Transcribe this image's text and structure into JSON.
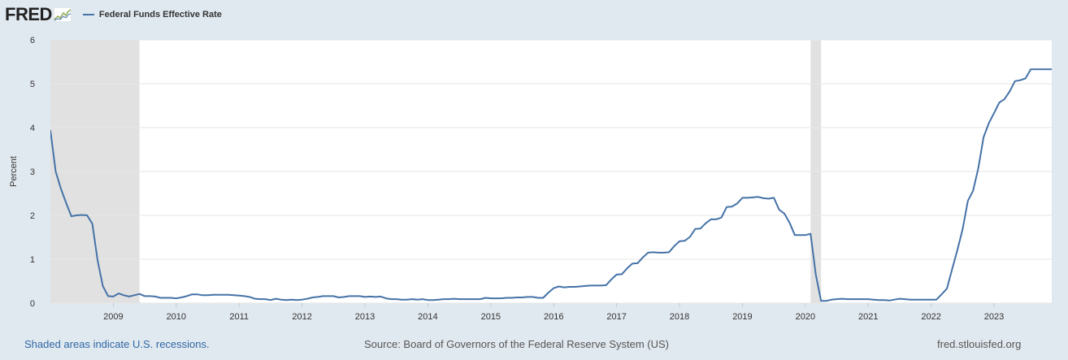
{
  "header": {
    "logo": "FRED",
    "legend_label": "Federal Funds Effective Rate"
  },
  "footer": {
    "recession_note": "Shaded areas indicate U.S. recessions.",
    "source": "Source: Board of Governors of the Federal Reserve System (US)",
    "site": "fred.stlouisfed.org"
  },
  "colors": {
    "line": "#4572a7",
    "recession": "#e1e1e1",
    "background": "#e1e9f0",
    "plot": "#ffffff",
    "grid": "#e6e6e6",
    "footer_link": "#2f67a5"
  },
  "chart_data": {
    "type": "line",
    "title": "",
    "xlabel": "",
    "ylabel": "Percent",
    "xlim": [
      "2008-01",
      "2023-12"
    ],
    "ylim": [
      0,
      6
    ],
    "yticks": [
      0,
      1,
      2,
      3,
      4,
      5,
      6
    ],
    "xticks": [
      "2009",
      "2010",
      "2011",
      "2012",
      "2013",
      "2014",
      "2015",
      "2016",
      "2017",
      "2018",
      "2019",
      "2020",
      "2021",
      "2022",
      "2023"
    ],
    "grid": true,
    "legend": "top-left",
    "recessions": [
      {
        "start": "2008-01",
        "end": "2009-06"
      },
      {
        "start": "2020-02",
        "end": "2020-04"
      }
    ],
    "series": [
      {
        "name": "Federal Funds Effective Rate",
        "x": [
          "2008-01",
          "2008-02",
          "2008-03",
          "2008-04",
          "2008-05",
          "2008-06",
          "2008-07",
          "2008-08",
          "2008-09",
          "2008-10",
          "2008-11",
          "2008-12",
          "2009-01",
          "2009-02",
          "2009-03",
          "2009-04",
          "2009-05",
          "2009-06",
          "2009-07",
          "2009-08",
          "2009-09",
          "2009-10",
          "2009-11",
          "2009-12",
          "2010-01",
          "2010-02",
          "2010-03",
          "2010-04",
          "2010-05",
          "2010-06",
          "2010-07",
          "2010-08",
          "2010-09",
          "2010-10",
          "2010-11",
          "2010-12",
          "2011-01",
          "2011-02",
          "2011-03",
          "2011-04",
          "2011-05",
          "2011-06",
          "2011-07",
          "2011-08",
          "2011-09",
          "2011-10",
          "2011-11",
          "2011-12",
          "2012-01",
          "2012-02",
          "2012-03",
          "2012-04",
          "2012-05",
          "2012-06",
          "2012-07",
          "2012-08",
          "2012-09",
          "2012-10",
          "2012-11",
          "2012-12",
          "2013-01",
          "2013-02",
          "2013-03",
          "2013-04",
          "2013-05",
          "2013-06",
          "2013-07",
          "2013-08",
          "2013-09",
          "2013-10",
          "2013-11",
          "2013-12",
          "2014-01",
          "2014-02",
          "2014-03",
          "2014-04",
          "2014-05",
          "2014-06",
          "2014-07",
          "2014-08",
          "2014-09",
          "2014-10",
          "2014-11",
          "2014-12",
          "2015-01",
          "2015-02",
          "2015-03",
          "2015-04",
          "2015-05",
          "2015-06",
          "2015-07",
          "2015-08",
          "2015-09",
          "2015-10",
          "2015-11",
          "2015-12",
          "2016-01",
          "2016-02",
          "2016-03",
          "2016-04",
          "2016-05",
          "2016-06",
          "2016-07",
          "2016-08",
          "2016-09",
          "2016-10",
          "2016-11",
          "2016-12",
          "2017-01",
          "2017-02",
          "2017-03",
          "2017-04",
          "2017-05",
          "2017-06",
          "2017-07",
          "2017-08",
          "2017-09",
          "2017-10",
          "2017-11",
          "2017-12",
          "2018-01",
          "2018-02",
          "2018-03",
          "2018-04",
          "2018-05",
          "2018-06",
          "2018-07",
          "2018-08",
          "2018-09",
          "2018-10",
          "2018-11",
          "2018-12",
          "2019-01",
          "2019-02",
          "2019-03",
          "2019-04",
          "2019-05",
          "2019-06",
          "2019-07",
          "2019-08",
          "2019-09",
          "2019-10",
          "2019-11",
          "2019-12",
          "2020-01",
          "2020-02",
          "2020-03",
          "2020-04",
          "2020-05",
          "2020-06",
          "2020-07",
          "2020-08",
          "2020-09",
          "2020-10",
          "2020-11",
          "2020-12",
          "2021-01",
          "2021-02",
          "2021-03",
          "2021-04",
          "2021-05",
          "2021-06",
          "2021-07",
          "2021-08",
          "2021-09",
          "2021-10",
          "2021-11",
          "2021-12",
          "2022-01",
          "2022-02",
          "2022-03",
          "2022-04",
          "2022-05",
          "2022-06",
          "2022-07",
          "2022-08",
          "2022-09",
          "2022-10",
          "2022-11",
          "2022-12",
          "2023-01",
          "2023-02",
          "2023-03",
          "2023-04",
          "2023-05",
          "2023-06",
          "2023-07",
          "2023-08",
          "2023-09",
          "2023-10",
          "2023-11",
          "2023-12"
        ],
        "values": [
          3.94,
          3.0,
          2.61,
          2.28,
          1.98,
          2.0,
          2.01,
          2.0,
          1.81,
          0.97,
          0.39,
          0.16,
          0.15,
          0.22,
          0.18,
          0.15,
          0.18,
          0.21,
          0.16,
          0.16,
          0.15,
          0.12,
          0.12,
          0.12,
          0.11,
          0.13,
          0.16,
          0.2,
          0.2,
          0.18,
          0.18,
          0.19,
          0.19,
          0.19,
          0.19,
          0.18,
          0.17,
          0.16,
          0.14,
          0.1,
          0.09,
          0.09,
          0.07,
          0.1,
          0.08,
          0.07,
          0.08,
          0.07,
          0.08,
          0.1,
          0.13,
          0.14,
          0.16,
          0.16,
          0.16,
          0.13,
          0.14,
          0.16,
          0.16,
          0.16,
          0.14,
          0.15,
          0.14,
          0.15,
          0.11,
          0.09,
          0.09,
          0.08,
          0.08,
          0.09,
          0.08,
          0.09,
          0.07,
          0.07,
          0.08,
          0.09,
          0.09,
          0.1,
          0.09,
          0.09,
          0.09,
          0.09,
          0.09,
          0.12,
          0.11,
          0.11,
          0.11,
          0.12,
          0.12,
          0.13,
          0.13,
          0.14,
          0.14,
          0.12,
          0.12,
          0.24,
          0.34,
          0.38,
          0.36,
          0.37,
          0.37,
          0.38,
          0.39,
          0.4,
          0.4,
          0.4,
          0.41,
          0.54,
          0.65,
          0.66,
          0.79,
          0.9,
          0.91,
          1.04,
          1.15,
          1.16,
          1.15,
          1.15,
          1.16,
          1.3,
          1.41,
          1.42,
          1.51,
          1.69,
          1.7,
          1.82,
          1.91,
          1.91,
          1.95,
          2.19,
          2.2,
          2.27,
          2.4,
          2.4,
          2.41,
          2.42,
          2.39,
          2.38,
          2.4,
          2.13,
          2.04,
          1.83,
          1.55,
          1.55,
          1.55,
          1.58,
          0.65,
          0.05,
          0.05,
          0.08,
          0.09,
          0.1,
          0.09,
          0.09,
          0.09,
          0.09,
          0.09,
          0.08,
          0.07,
          0.07,
          0.06,
          0.08,
          0.1,
          0.09,
          0.08,
          0.08,
          0.08,
          0.08,
          0.08,
          0.08,
          0.2,
          0.33,
          0.77,
          1.21,
          1.68,
          2.33,
          2.56,
          3.08,
          3.78,
          4.1,
          4.33,
          4.57,
          4.65,
          4.83,
          5.06,
          5.08,
          5.12,
          5.33,
          5.33,
          5.33,
          5.33,
          5.33
        ]
      }
    ]
  }
}
